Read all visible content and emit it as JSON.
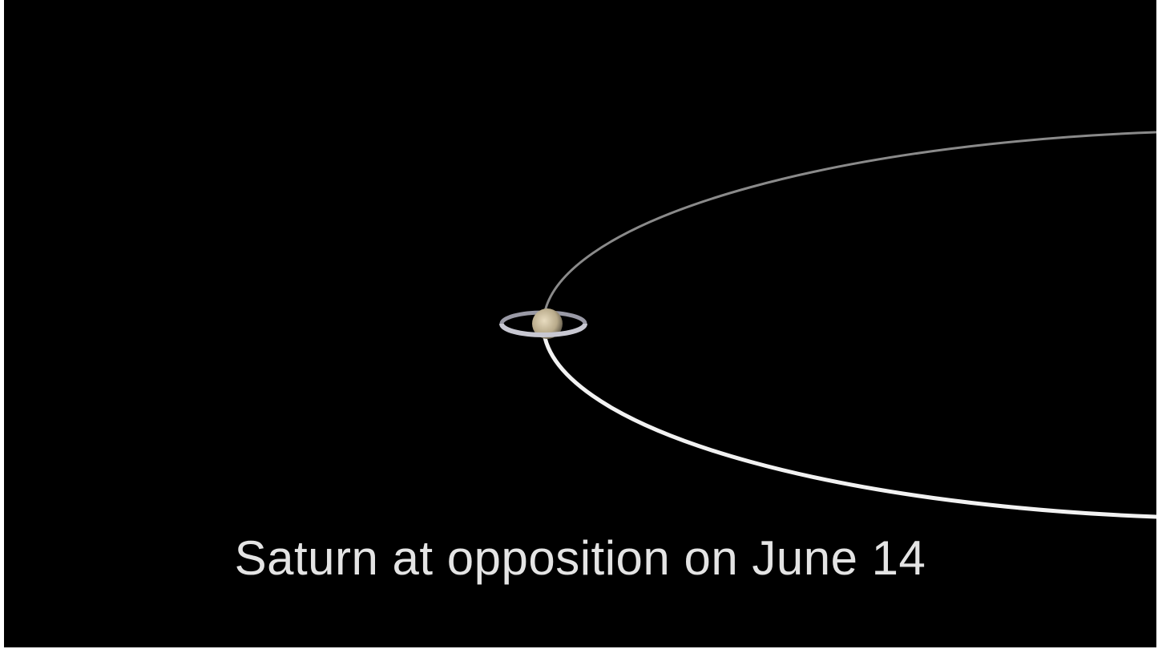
{
  "caption": "Saturn at opposition on June 14"
}
